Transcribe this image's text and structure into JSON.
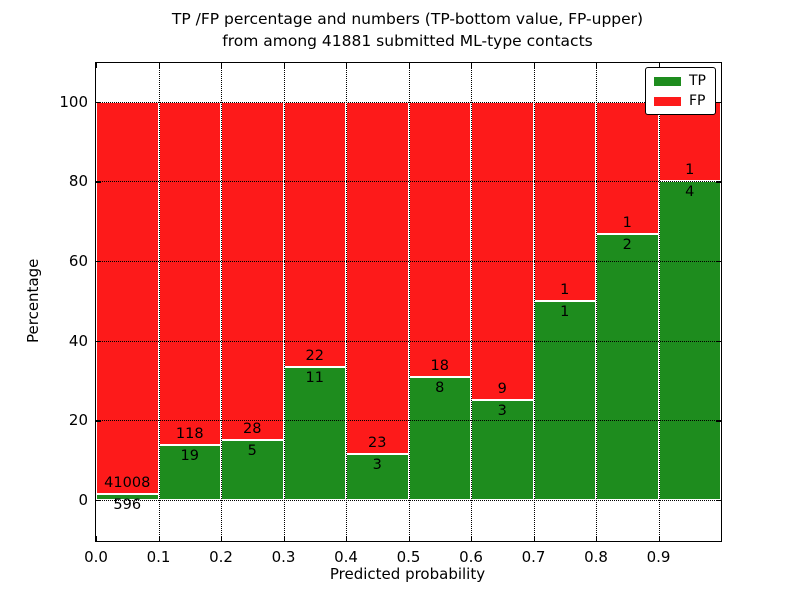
{
  "title": {
    "line1": "TP /FP percentage and numbers (TP-bottom value, FP-upper)",
    "line2": "from among 41881 submitted ML-type contacts"
  },
  "axes": {
    "xlabel": "Predicted probability",
    "ylabel": "Percentage",
    "x_ticks": [
      "0.0",
      "0.1",
      "0.2",
      "0.3",
      "0.4",
      "0.5",
      "0.6",
      "0.7",
      "0.8",
      "0.9"
    ],
    "y_ticks": [
      "0",
      "20",
      "40",
      "60",
      "80",
      "100"
    ]
  },
  "legend": {
    "items": [
      {
        "label": "TP",
        "color": "#1e8c1e"
      },
      {
        "label": "FP",
        "color": "#fd1a1a"
      }
    ]
  },
  "colors": {
    "tp_green": "#1e8c1e",
    "fp_red": "#fd1a1a",
    "bar_edge": "#ffffff",
    "grid": "#000000",
    "background": "#ffffff"
  },
  "chart_data": {
    "type": "bar",
    "stacked": true,
    "normalized": "percent (each bin stacks to 100)",
    "title": "TP /FP percentage and numbers (TP-bottom value, FP-upper) from among 41881 submitted ML-type contacts",
    "xlabel": "Predicted probability",
    "ylabel": "Percentage",
    "xlim": [
      0.0,
      1.0
    ],
    "ylim": [
      -10.3,
      109.7
    ],
    "grid": true,
    "legend_position": "upper right",
    "bin_edges": [
      0.0,
      0.1,
      0.2,
      0.3,
      0.4,
      0.5,
      0.6,
      0.7,
      0.8,
      0.9,
      1.0
    ],
    "categories": [
      "0.0-0.1",
      "0.1-0.2",
      "0.2-0.3",
      "0.3-0.4",
      "0.4-0.5",
      "0.5-0.6",
      "0.6-0.7",
      "0.7-0.8",
      "0.8-0.9",
      "0.9-1.0"
    ],
    "series": [
      {
        "name": "TP",
        "color": "#1e8c1e",
        "counts": [
          596,
          19,
          5,
          11,
          3,
          8,
          3,
          1,
          2,
          4
        ],
        "percent": [
          1.43,
          13.87,
          15.15,
          33.33,
          11.54,
          30.77,
          25.0,
          50.0,
          66.67,
          80.0
        ]
      },
      {
        "name": "FP",
        "color": "#fd1a1a",
        "counts": [
          41008,
          118,
          28,
          22,
          23,
          18,
          9,
          1,
          1,
          1
        ],
        "percent": [
          98.57,
          86.13,
          84.85,
          66.67,
          88.46,
          69.23,
          75.0,
          50.0,
          33.33,
          20.0
        ]
      }
    ],
    "total_contacts": 41881
  }
}
